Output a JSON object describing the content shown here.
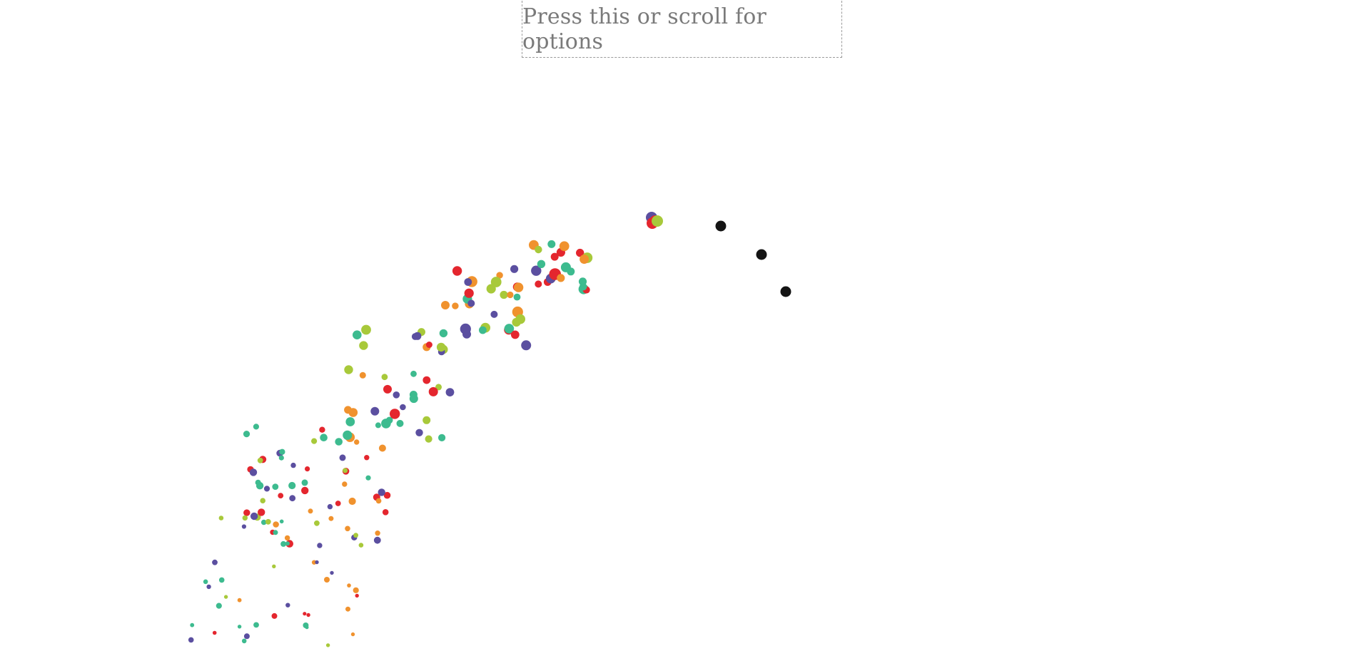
{
  "options_button": {
    "label": "Press this or scroll for options"
  },
  "palette": {
    "purple": "#5b4fa0",
    "green": "#3dbb8f",
    "lime": "#a8c93a",
    "orange": "#f0922e",
    "red": "#e4262e",
    "black": "#141414"
  },
  "tail_dots_color": "black"
}
